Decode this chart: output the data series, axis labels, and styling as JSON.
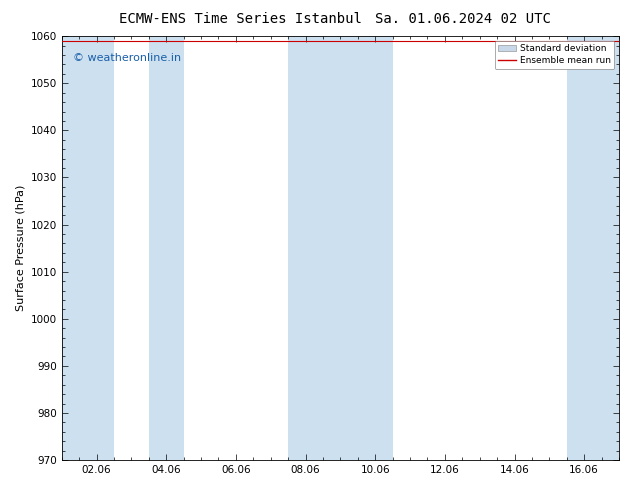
{
  "title_left": "ECMW-ENS Time Series Istanbul",
  "title_right": "Sa. 01.06.2024 02 UTC",
  "ylabel": "Surface Pressure (hPa)",
  "ylim": [
    970,
    1060
  ],
  "yticks": [
    970,
    980,
    990,
    1000,
    1010,
    1020,
    1030,
    1040,
    1050,
    1060
  ],
  "xtick_labels": [
    "02.06",
    "04.06",
    "06.06",
    "08.06",
    "10.06",
    "12.06",
    "14.06",
    "16.06"
  ],
  "xtick_positions": [
    2,
    4,
    6,
    8,
    10,
    12,
    14,
    16
  ],
  "x_min": 1,
  "x_max": 17,
  "background_color": "#ffffff",
  "plot_bg_color": "#ffffff",
  "shaded_band_color": "#cce0f0",
  "watermark_text": "© weatheronline.in",
  "watermark_color": "#1a5fa8",
  "watermark_fontsize": 8,
  "legend_std_label": "Standard deviation",
  "legend_mean_label": "Ensemble mean run",
  "legend_std_color": "#c8d8e8",
  "legend_mean_color": "#cc0000",
  "title_fontsize": 10,
  "axis_label_fontsize": 8,
  "tick_fontsize": 7.5,
  "shaded_bands": [
    {
      "x_start": 1.0,
      "x_end": 2.5
    },
    {
      "x_start": 3.5,
      "x_end": 4.5
    },
    {
      "x_start": 7.5,
      "x_end": 10.5
    },
    {
      "x_start": 15.5,
      "x_end": 17.0
    }
  ],
  "mean_line_y": 1059.0,
  "figsize": [
    6.34,
    4.9
  ],
  "dpi": 100
}
